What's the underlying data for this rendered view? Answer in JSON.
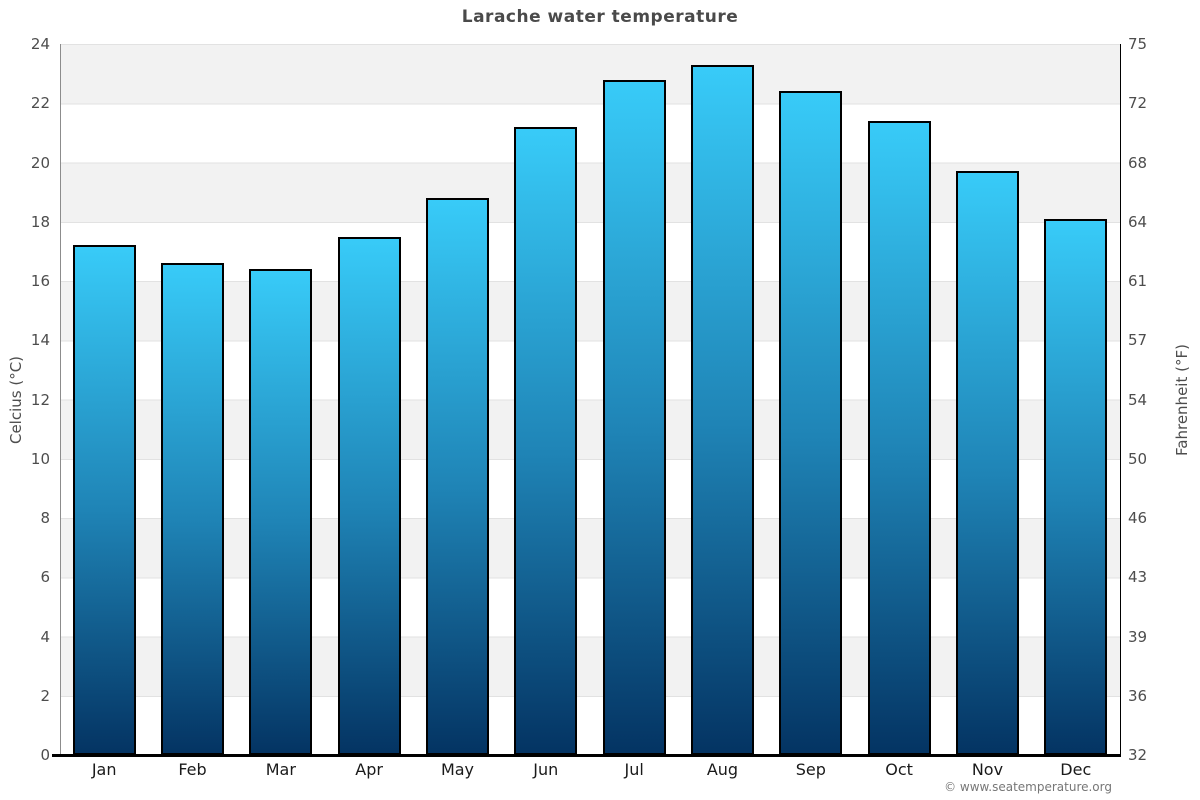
{
  "page": {
    "copyright": "© www.seatemperature.org"
  },
  "chart_data": {
    "type": "bar",
    "title": "Larache water temperature",
    "categories": [
      "Jan",
      "Feb",
      "Mar",
      "Apr",
      "May",
      "Jun",
      "Jul",
      "Aug",
      "Sep",
      "Oct",
      "Nov",
      "Dec"
    ],
    "values": [
      17.2,
      16.6,
      16.4,
      17.5,
      18.8,
      21.2,
      22.8,
      23.3,
      22.4,
      21.4,
      19.7,
      18.1
    ],
    "series_unit": "°C",
    "ylabel_left": "Celcius (°C)",
    "ylabel_right": "Fahrenheit (°F)",
    "yticks_celsius": [
      24,
      22,
      20,
      18,
      16,
      14,
      12,
      10,
      8,
      6,
      4,
      2,
      0
    ],
    "yticks_fahrenheit": [
      75,
      72,
      68,
      64,
      61,
      57,
      54,
      50,
      46,
      43,
      39,
      36,
      32
    ],
    "ylim": [
      0,
      24
    ],
    "grid": "horizontal alternating bands with light gridlines",
    "legend": "none",
    "colors": {
      "bar_gradient_top": "#38cbf8",
      "bar_gradient_mid": "#1f84b6",
      "bar_gradient_bottom": "#043463",
      "bar_border": "#000000",
      "band_gray": "#f2f2f2",
      "gridline": "#e2e2e2",
      "title_text": "#4a4a4a",
      "axis_text": "#4d4d4d",
      "month_text": "#1a1a1a",
      "copyright_text": "#777777"
    }
  }
}
